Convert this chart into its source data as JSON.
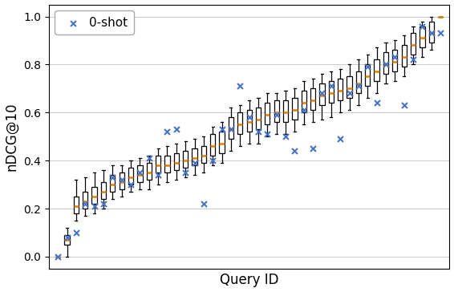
{
  "title": "",
  "xlabel": "Query ID",
  "ylabel": "nDCG@10",
  "ylim": [
    -0.05,
    1.05
  ],
  "n_queries": 43,
  "seed": 12345,
  "box_medians": [
    0.0,
    0.07,
    0.21,
    0.23,
    0.25,
    0.27,
    0.3,
    0.31,
    0.33,
    0.34,
    0.35,
    0.38,
    0.38,
    0.39,
    0.4,
    0.41,
    0.42,
    0.46,
    0.47,
    0.53,
    0.55,
    0.56,
    0.57,
    0.59,
    0.6,
    0.6,
    0.61,
    0.64,
    0.65,
    0.67,
    0.68,
    0.69,
    0.7,
    0.72,
    0.75,
    0.77,
    0.8,
    0.81,
    0.83,
    0.88,
    0.91,
    0.93,
    1.0
  ],
  "box_q1_offsets": [
    0.0,
    0.02,
    0.03,
    0.03,
    0.03,
    0.03,
    0.03,
    0.03,
    0.03,
    0.03,
    0.03,
    0.03,
    0.03,
    0.03,
    0.03,
    0.03,
    0.03,
    0.04,
    0.04,
    0.04,
    0.04,
    0.04,
    0.04,
    0.04,
    0.04,
    0.04,
    0.04,
    0.04,
    0.04,
    0.04,
    0.04,
    0.04,
    0.04,
    0.04,
    0.04,
    0.04,
    0.04,
    0.04,
    0.04,
    0.04,
    0.04,
    0.04,
    0.0
  ],
  "box_q3_offsets": [
    0.0,
    0.02,
    0.04,
    0.04,
    0.04,
    0.04,
    0.04,
    0.04,
    0.04,
    0.04,
    0.04,
    0.04,
    0.04,
    0.04,
    0.04,
    0.04,
    0.04,
    0.05,
    0.05,
    0.05,
    0.05,
    0.05,
    0.05,
    0.05,
    0.05,
    0.05,
    0.05,
    0.05,
    0.05,
    0.05,
    0.05,
    0.05,
    0.05,
    0.05,
    0.05,
    0.05,
    0.05,
    0.05,
    0.05,
    0.05,
    0.05,
    0.05,
    0.0
  ],
  "box_whisker_lo": [
    0.0,
    0.0,
    0.15,
    0.17,
    0.18,
    0.2,
    0.24,
    0.25,
    0.27,
    0.28,
    0.28,
    0.3,
    0.31,
    0.32,
    0.33,
    0.34,
    0.35,
    0.38,
    0.39,
    0.44,
    0.46,
    0.47,
    0.47,
    0.5,
    0.51,
    0.51,
    0.52,
    0.55,
    0.56,
    0.57,
    0.58,
    0.6,
    0.61,
    0.63,
    0.66,
    0.68,
    0.72,
    0.73,
    0.75,
    0.8,
    0.83,
    0.86,
    1.0
  ],
  "box_whisker_hi": [
    0.0,
    0.12,
    0.32,
    0.33,
    0.35,
    0.36,
    0.38,
    0.38,
    0.4,
    0.41,
    0.42,
    0.45,
    0.46,
    0.47,
    0.48,
    0.49,
    0.5,
    0.54,
    0.56,
    0.62,
    0.63,
    0.65,
    0.66,
    0.68,
    0.68,
    0.69,
    0.7,
    0.73,
    0.74,
    0.76,
    0.77,
    0.78,
    0.8,
    0.82,
    0.84,
    0.87,
    0.89,
    0.9,
    0.92,
    0.96,
    0.98,
    1.0,
    1.0
  ],
  "zero_shot_scores": [
    0.0,
    0.08,
    0.1,
    0.22,
    0.21,
    0.22,
    0.33,
    0.32,
    0.3,
    0.35,
    0.41,
    0.34,
    0.52,
    0.53,
    0.35,
    0.39,
    0.22,
    0.4,
    0.53,
    0.53,
    0.71,
    0.58,
    0.52,
    0.51,
    0.59,
    0.5,
    0.44,
    0.61,
    0.45,
    0.68,
    0.71,
    0.49,
    0.68,
    0.71,
    0.79,
    0.64,
    0.8,
    0.83,
    0.63,
    0.82,
    0.96,
    0.93,
    0.93
  ],
  "box_color": "white",
  "median_color": "#e08000",
  "whisker_color": "black",
  "scatter_color": "#4472c4",
  "scatter_marker": "x",
  "scatter_size": 25,
  "scatter_linewidth": 1.5,
  "legend_fontsize": 11,
  "axis_label_fontsize": 12,
  "tick_fontsize": 10,
  "grid_color": "#cccccc",
  "grid_linewidth": 0.8,
  "box_width": 0.55,
  "line_width": 0.9
}
